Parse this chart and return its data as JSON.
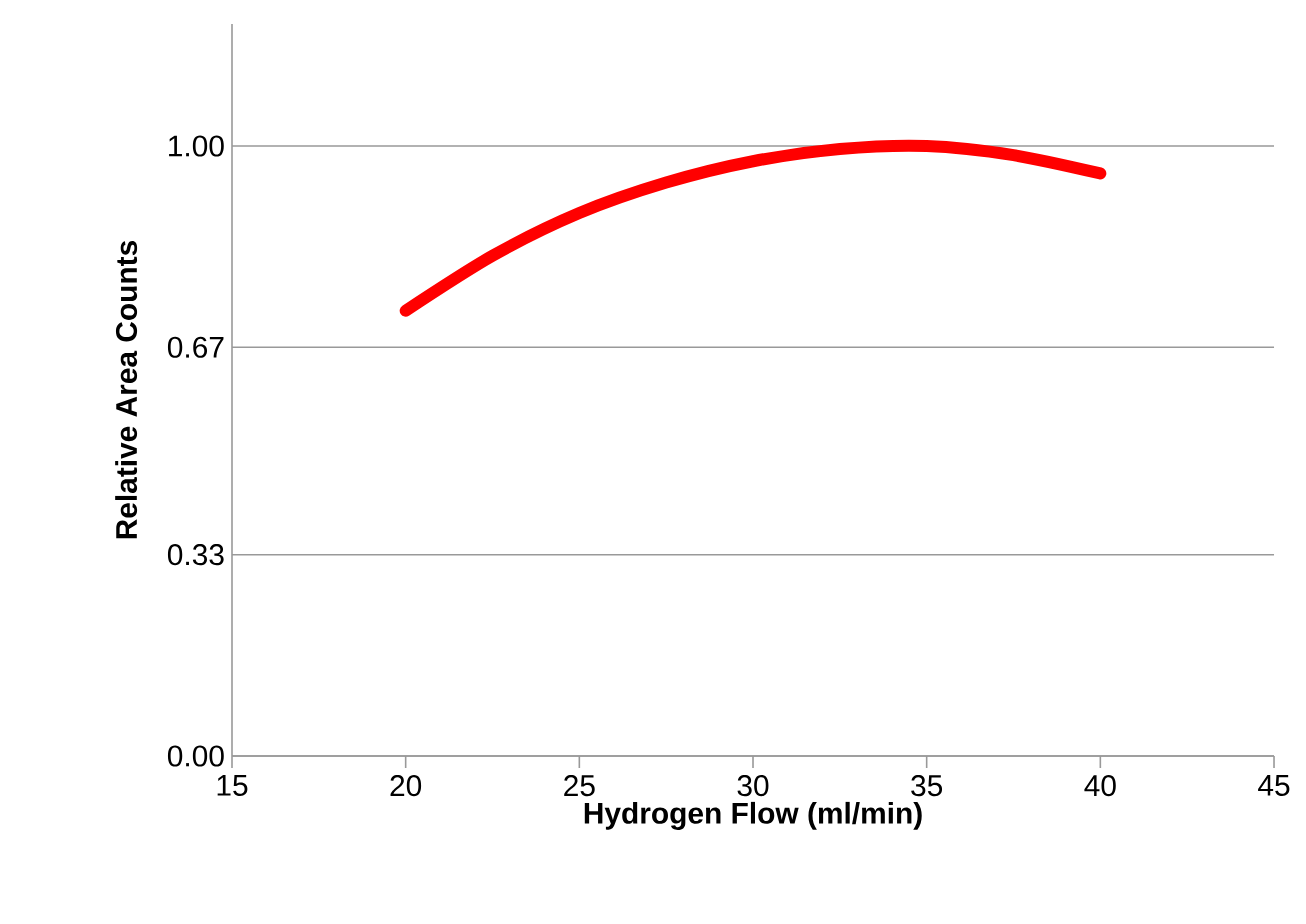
{
  "chart_data": {
    "type": "line",
    "xlabel": "Hydrogen Flow (ml/min)",
    "ylabel": "Relative Area Counts",
    "x": [
      20,
      22.5,
      25,
      27.5,
      30,
      32.5,
      35,
      37.5,
      40
    ],
    "series": [
      {
        "color": "#ff0000",
        "values": [
          0.73,
          0.82,
          0.89,
          0.94,
          0.975,
          0.995,
          1.0,
          0.985,
          0.955
        ]
      }
    ],
    "xlim": [
      15,
      45
    ],
    "xticks": [
      15,
      20,
      25,
      30,
      35,
      40,
      45
    ],
    "ylim": [
      0,
      1.2
    ],
    "yticks": [
      {
        "value": 0,
        "label": "0.00"
      },
      {
        "value": 0.33,
        "label": "0.33"
      },
      {
        "value": 0.67,
        "label": "0.67"
      },
      {
        "value": 1.0,
        "label": "1.00"
      }
    ],
    "grid": "y",
    "marker": "none",
    "line_style": "solid"
  }
}
